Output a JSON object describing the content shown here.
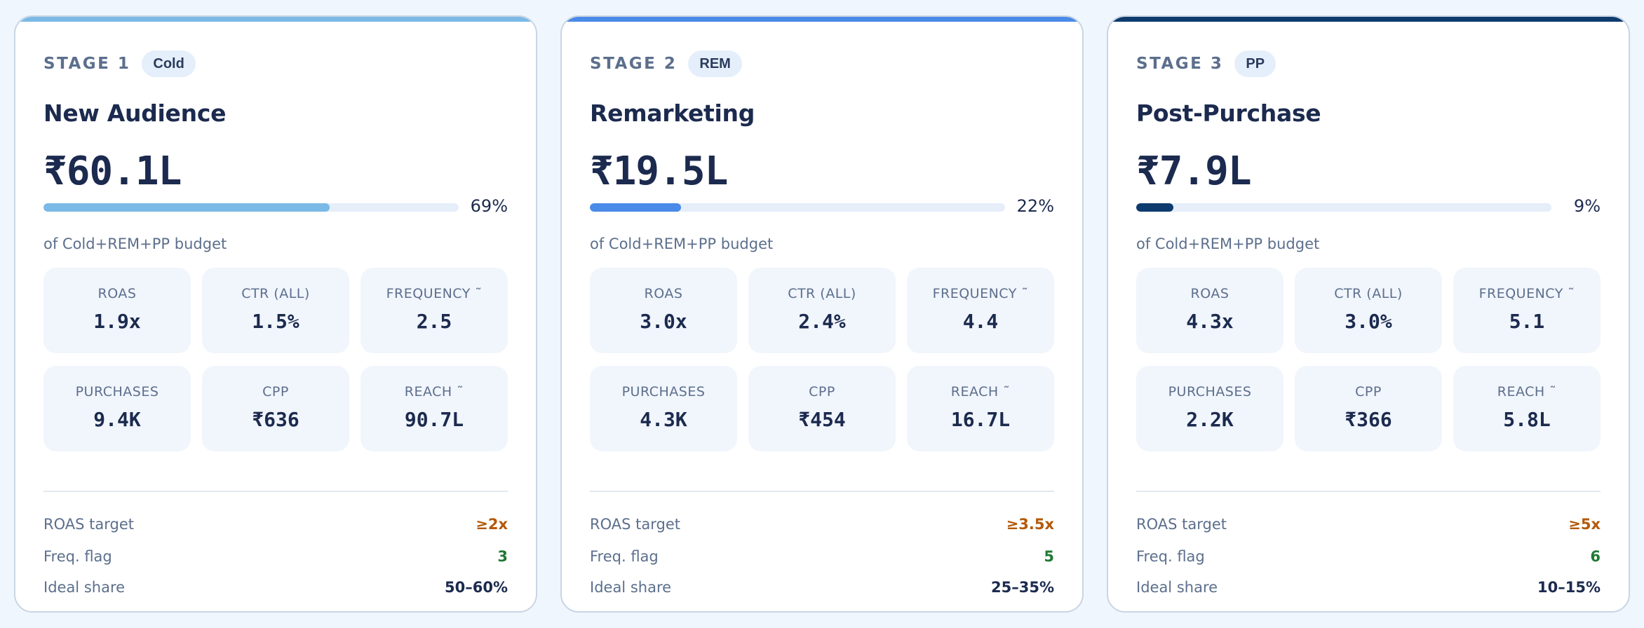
{
  "cards": [
    {
      "stage": "STAGE 1",
      "badge": "Cold",
      "title": "New Audience",
      "amount": "₹60.1L",
      "share_pct": 69,
      "share_label": "69%",
      "budget_note": "of Cold+REM+PP budget",
      "bar_color": "#7bb9e6",
      "metrics": [
        {
          "label": "ROAS",
          "value": "1.9x"
        },
        {
          "label": "CTR (ALL)",
          "value": "1.5%"
        },
        {
          "label": "FREQUENCY ˜",
          "value": "2.5"
        },
        {
          "label": "PURCHASES",
          "value": "9.4K"
        },
        {
          "label": "CPP",
          "value": "₹636"
        },
        {
          "label": "REACH ˜",
          "value": "90.7L"
        }
      ],
      "roas_target_label": "ROAS target",
      "roas_target": "≥2x",
      "freq_flag_label": "Freq. flag",
      "freq_flag": "3",
      "ideal_share_label": "Ideal share",
      "ideal_share": "50–60%"
    },
    {
      "stage": "STAGE 2",
      "badge": "REM",
      "title": "Remarketing",
      "amount": "₹19.5L",
      "share_pct": 22,
      "share_label": "22%",
      "budget_note": "of Cold+REM+PP budget",
      "bar_color": "#4a8ae8",
      "metrics": [
        {
          "label": "ROAS",
          "value": "3.0x"
        },
        {
          "label": "CTR (ALL)",
          "value": "2.4%"
        },
        {
          "label": "FREQUENCY ˜",
          "value": "4.4"
        },
        {
          "label": "PURCHASES",
          "value": "4.3K"
        },
        {
          "label": "CPP",
          "value": "₹454"
        },
        {
          "label": "REACH ˜",
          "value": "16.7L"
        }
      ],
      "roas_target_label": "ROAS target",
      "roas_target": "≥3.5x",
      "freq_flag_label": "Freq. flag",
      "freq_flag": "5",
      "ideal_share_label": "Ideal share",
      "ideal_share": "25–35%"
    },
    {
      "stage": "STAGE 3",
      "badge": "PP",
      "title": "Post-Purchase",
      "amount": "₹7.9L",
      "share_pct": 9,
      "share_label": "9%",
      "budget_note": "of Cold+REM+PP budget",
      "bar_color": "#0d3b6e",
      "metrics": [
        {
          "label": "ROAS",
          "value": "4.3x"
        },
        {
          "label": "CTR (ALL)",
          "value": "3.0%"
        },
        {
          "label": "FREQUENCY ˜",
          "value": "5.1"
        },
        {
          "label": "PURCHASES",
          "value": "2.2K"
        },
        {
          "label": "CPP",
          "value": "₹366"
        },
        {
          "label": "REACH ˜",
          "value": "5.8L"
        }
      ],
      "roas_target_label": "ROAS target",
      "roas_target": "≥5x",
      "freq_flag_label": "Freq. flag",
      "freq_flag": "6",
      "ideal_share_label": "Ideal share",
      "ideal_share": "10–15%"
    }
  ],
  "colors": {
    "roas_target": "#b3590a",
    "freq_flag": "#1e7a34",
    "ideal_share": "#1b2a4e"
  }
}
